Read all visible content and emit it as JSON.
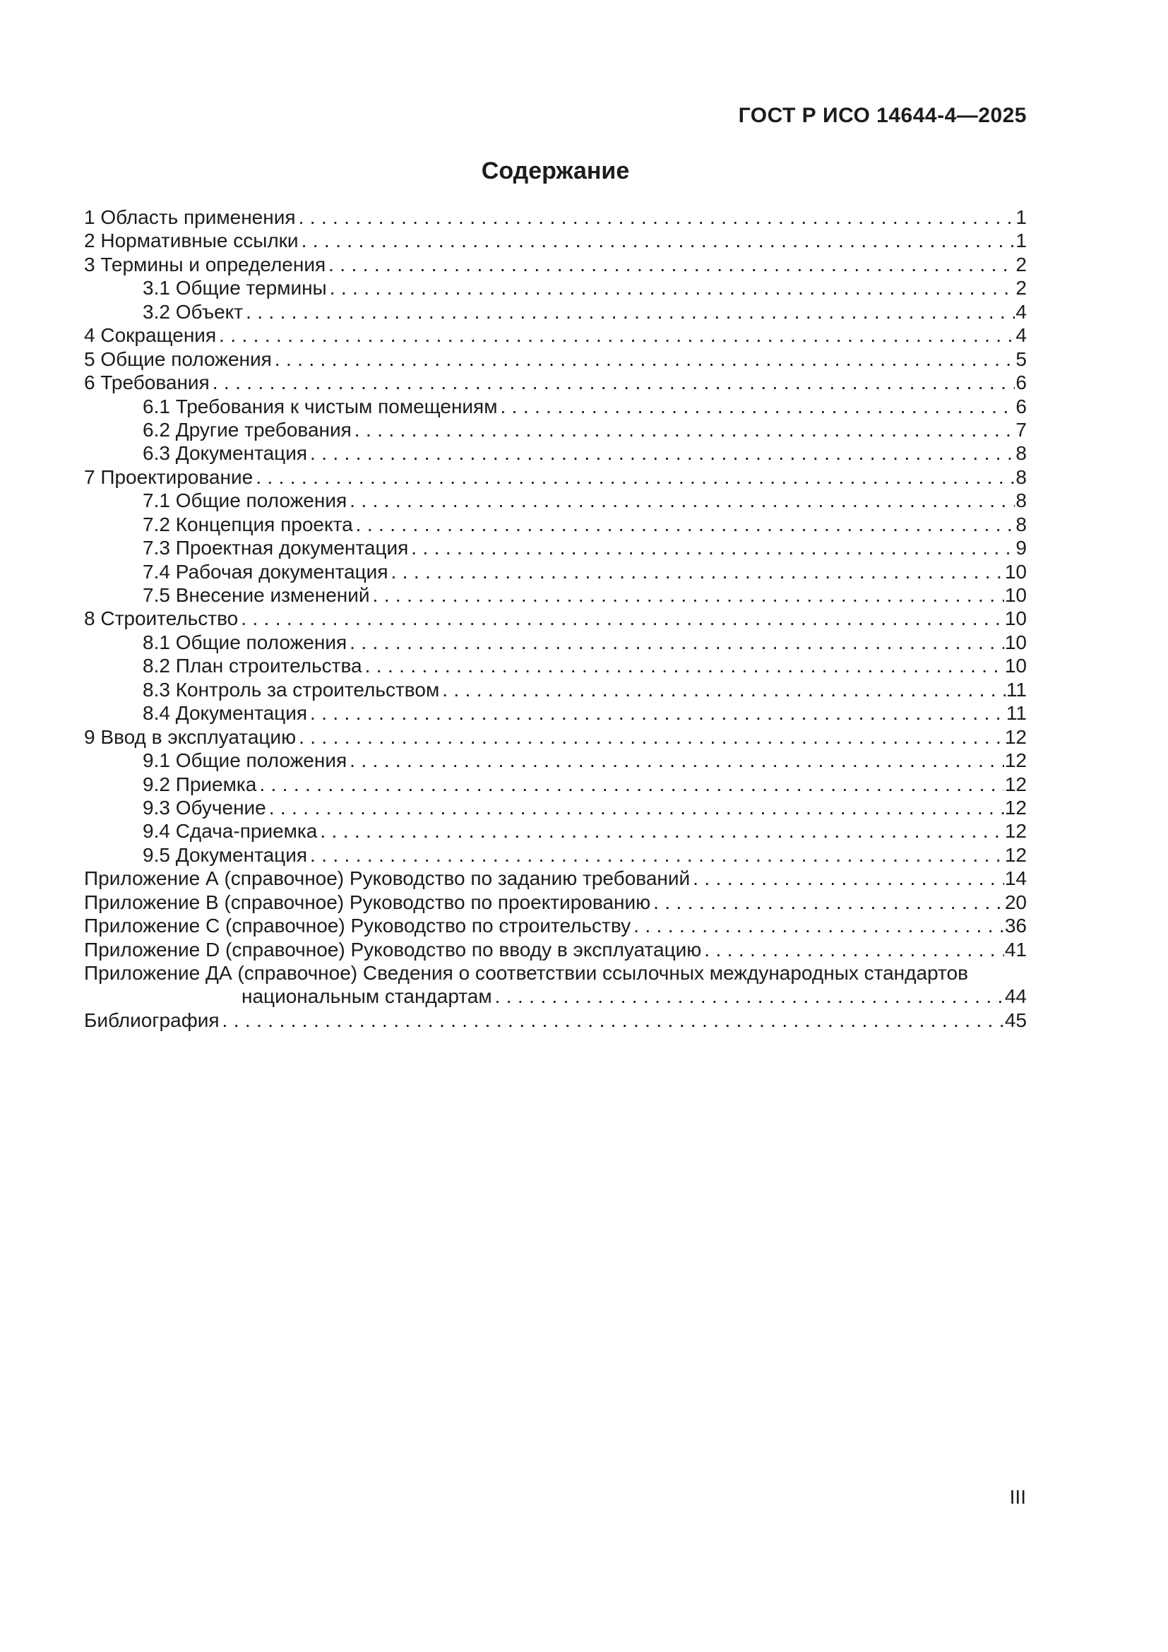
{
  "header": {
    "standard": "ГОСТ Р ИСО 14644-4—2025"
  },
  "title": "Содержание",
  "toc": {
    "entries": [
      {
        "label": "1 Область применения",
        "page": "1",
        "indent": 0
      },
      {
        "label": "2 Нормативные ссылки",
        "page": "1",
        "indent": 0
      },
      {
        "label": "3 Термины и определения",
        "page": "2",
        "indent": 0
      },
      {
        "label": "3.1 Общие термины",
        "page": "2",
        "indent": 1
      },
      {
        "label": "3.2 Объект",
        "page": "4",
        "indent": 1
      },
      {
        "label": "4 Сокращения",
        "page": "4",
        "indent": 0
      },
      {
        "label": "5 Общие положения",
        "page": "5",
        "indent": 0
      },
      {
        "label": "6 Требования",
        "page": "6",
        "indent": 0
      },
      {
        "label": "6.1 Требования к чистым помещениям",
        "page": "6",
        "indent": 1
      },
      {
        "label": "6.2 Другие требования",
        "page": "7",
        "indent": 1
      },
      {
        "label": "6.3 Документация",
        "page": "8",
        "indent": 1
      },
      {
        "label": "7 Проектирование",
        "page": "8",
        "indent": 0
      },
      {
        "label": "7.1 Общие положения",
        "page": "8",
        "indent": 1
      },
      {
        "label": "7.2 Концепция проекта",
        "page": "8",
        "indent": 1
      },
      {
        "label": "7.3 Проектная документация",
        "page": "9",
        "indent": 1
      },
      {
        "label": "7.4 Рабочая документация",
        "page": "10",
        "indent": 1
      },
      {
        "label": "7.5 Внесение изменений",
        "page": "10",
        "indent": 1
      },
      {
        "label": "8 Строительство",
        "page": "10",
        "indent": 0
      },
      {
        "label": "8.1 Общие положения",
        "page": "10",
        "indent": 1
      },
      {
        "label": "8.2 План строительства",
        "page": "10",
        "indent": 1
      },
      {
        "label": "8.3 Контроль за строительством",
        "page": "11",
        "indent": 1
      },
      {
        "label": "8.4 Документация",
        "page": "11",
        "indent": 1
      },
      {
        "label": "9 Ввод в эксплуатацию",
        "page": "12",
        "indent": 0
      },
      {
        "label": "9.1 Общие положения",
        "page": "12",
        "indent": 1
      },
      {
        "label": "9.2 Приемка",
        "page": "12",
        "indent": 1
      },
      {
        "label": "9.3 Обучение",
        "page": "12",
        "indent": 1
      },
      {
        "label": "9.4 Сдача-приемка",
        "page": "12",
        "indent": 1
      },
      {
        "label": "9.5 Документация",
        "page": "12",
        "indent": 1
      },
      {
        "label": "Приложение А (справочное) Руководство по заданию требований",
        "page": "14",
        "indent": 0
      },
      {
        "label": "Приложение В (справочное) Руководство по проектированию",
        "page": "20",
        "indent": 0
      },
      {
        "label": "Приложение С (справочное) Руководство по строительству",
        "page": "36",
        "indent": 0
      },
      {
        "label": "Приложение D (справочное) Руководство по вводу в эксплуатацию",
        "page": "41",
        "indent": 0
      },
      {
        "label": "Приложение ДА (справочное) Сведения о соответствии ссылочных международных стандартов",
        "page": null,
        "indent": 0
      },
      {
        "label": "национальным стандартам",
        "page": "44",
        "indent": 2
      },
      {
        "label": "Библиография",
        "page": "45",
        "indent": 0
      }
    ]
  },
  "footer": {
    "page_number": "III"
  }
}
